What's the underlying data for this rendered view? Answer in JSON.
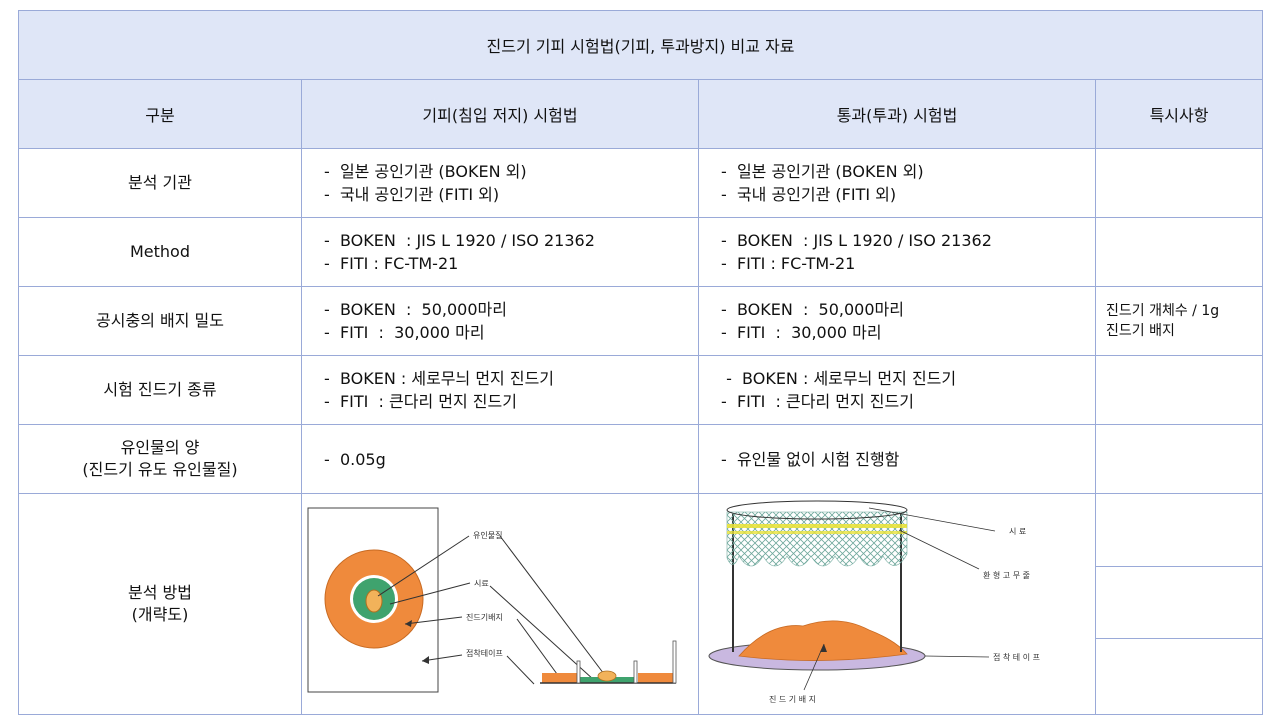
{
  "title": "진드기 기피 시험법(기피, 투과방지) 비교 자료",
  "headers": [
    "구분",
    "기피(침입 저지) 시험법",
    "통과(투과) 시험법",
    "특시사항"
  ],
  "rows": {
    "agency": {
      "label": "분석 기관",
      "repel": [
        "-  일본 공인기관 (BOKEN 외)",
        "-  국내 공인기관 (FITI 외)"
      ],
      "pass": [
        "-  일본 공인기관 (BOKEN 외)",
        "-  국내 공인기관 (FITI 외)"
      ],
      "note": ""
    },
    "method": {
      "label": "Method",
      "repel": [
        "-  BOKEN  : JIS L 1920 / ISO 21362",
        "-  FITI : FC-TM-21"
      ],
      "pass": [
        "-  BOKEN  : JIS L 1920 / ISO 21362",
        "-  FITI : FC-TM-21"
      ],
      "note": ""
    },
    "density": {
      "label": "공시충의 배지 밀도",
      "repel": [
        "-  BOKEN  :  50,000마리",
        "-  FITI  :  30,000 마리"
      ],
      "pass": [
        "-  BOKEN  :  50,000마리",
        "-  FITI  :  30,000 마리"
      ],
      "note": [
        "진드기 개체수 / 1g",
        "진드기 배지"
      ]
    },
    "species": {
      "label": "시험 진드기 종류",
      "repel": [
        "-  BOKEN : 세로무늬 먼지 진드기",
        "-  FITI  : 큰다리 먼지 진드기"
      ],
      "pass": [
        " -  BOKEN : 세로무늬 먼지 진드기",
        "-  FITI  : 큰다리 먼지 진드기"
      ],
      "note": ""
    },
    "attractant": {
      "label": [
        "유인물의 양",
        "(진드기 유도 유인물질)"
      ],
      "repel": [
        "-  0.05g"
      ],
      "pass": [
        "-  유인물 없이 시험 진행함"
      ],
      "note": ""
    },
    "procedure": {
      "label": [
        "분석 방법",
        "(개략도)"
      ]
    }
  },
  "figure_repel": {
    "labels": {
      "attractant": "유인물질",
      "sample": "시료",
      "medium": "진드기배지",
      "tape": "접착테이프"
    },
    "colors": {
      "orange": "#ef8a3c",
      "green": "#3fa36e",
      "bait": "#f2b25a"
    }
  },
  "figure_pass": {
    "labels": {
      "sample": "시 료",
      "ring": "환 형 고 무 줄",
      "tape": "접 착 테 이 프",
      "medium": "진 드 기 배 지"
    },
    "colors": {
      "mesh": "#9fcfc4",
      "band": "#e8e23a",
      "plate": "#c9b8e0",
      "medium": "#ef8a3c"
    }
  }
}
